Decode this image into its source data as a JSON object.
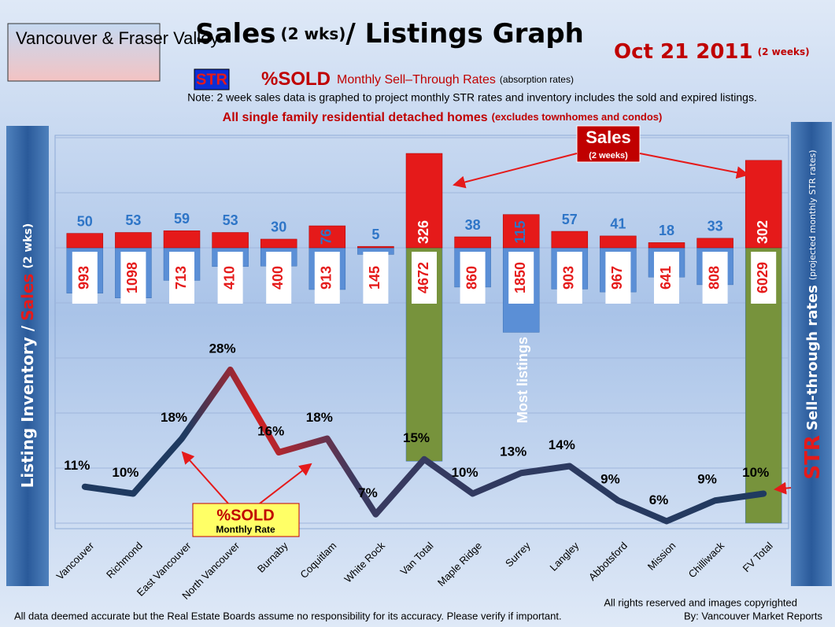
{
  "chart_data": {
    "type": "bar",
    "title": "Sales",
    "title_note": "(2 wks)",
    "title_rest": "/ Listings Graph",
    "region": "Vancouver & Fraser Valley",
    "date": "Oct 21 2011",
    "date_note": "(2 weeks)",
    "legend_str": "STR",
    "legend_sold": "%SOLD",
    "legend_text": "Monthly Sell–Through Rates",
    "legend_note": "(absorption rates)",
    "note": "Note: 2 week sales data is graphed to project monthly STR rates and inventory includes the sold and expired listings.",
    "subtitle": "All single family residential detached homes",
    "subtitle_note": "(excludes townhomes and condos)",
    "y_label": [
      "Listing Inventory /",
      "Sales",
      "(2 wks)"
    ],
    "y2_label": [
      "STR",
      "Sell-through rates",
      "(projected monthly STR rates)"
    ],
    "annotations": [
      {
        "text": "Sales",
        "note": "(2 weeks)"
      },
      {
        "text": "%SOLD",
        "note": "Monthly Rate"
      },
      {
        "text": "Most listings"
      }
    ],
    "footer": {
      "copyright": "All rights reserved and  images copyrighted",
      "disclaimer": "All data deemed accurate but the Real Estate Boards assume no responsibility for its accuracy.  Please verify if important.",
      "credit": "By: Vancouver Market Reports"
    },
    "categories": [
      "Vancouver",
      "Richmond",
      "East Vancouver",
      "North Vancouver",
      "Burnaby",
      "Coquitlam",
      "White Rock",
      "Van Total",
      "Maple Ridge",
      "Surrey",
      "Langley",
      "Abbotsford",
      "Mission",
      "Chilliwack",
      "FV Total"
    ],
    "series": [
      {
        "color": "#e51a1a",
        "values": [
          50,
          53,
          59,
          53,
          30,
          76,
          5,
          326,
          38,
          115,
          57,
          41,
          18,
          33,
          302
        ]
      },
      {
        "color": "#5b8fd6",
        "colors": [
          "#5b8fd6",
          "#5b8fd6",
          "#5b8fd6",
          "#5b8fd6",
          "#5b8fd6",
          "#5b8fd6",
          "#5b8fd6",
          "#77933c",
          "#5b8fd6",
          "#5b8fd6",
          "#5b8fd6",
          "#5b8fd6",
          "#5b8fd6",
          "#5b8fd6",
          "#77933c"
        ],
        "values": [
          993,
          1098,
          713,
          410,
          400,
          913,
          145,
          4672,
          860,
          1850,
          903,
          967,
          641,
          808,
          6029
        ]
      },
      {
        "color": "#1f3a60",
        "axis": "y2",
        "values": [
          11,
          10,
          18,
          28,
          16,
          18,
          7,
          15,
          10,
          13,
          14,
          9,
          6,
          9,
          10
        ],
        "value_labels": [
          "11%",
          "10%",
          "18%",
          "28%",
          "16%",
          "18%",
          "7%",
          "15%",
          "10%",
          "13%",
          "14%",
          "9%",
          "6%",
          "9%",
          "10%"
        ]
      }
    ]
  }
}
